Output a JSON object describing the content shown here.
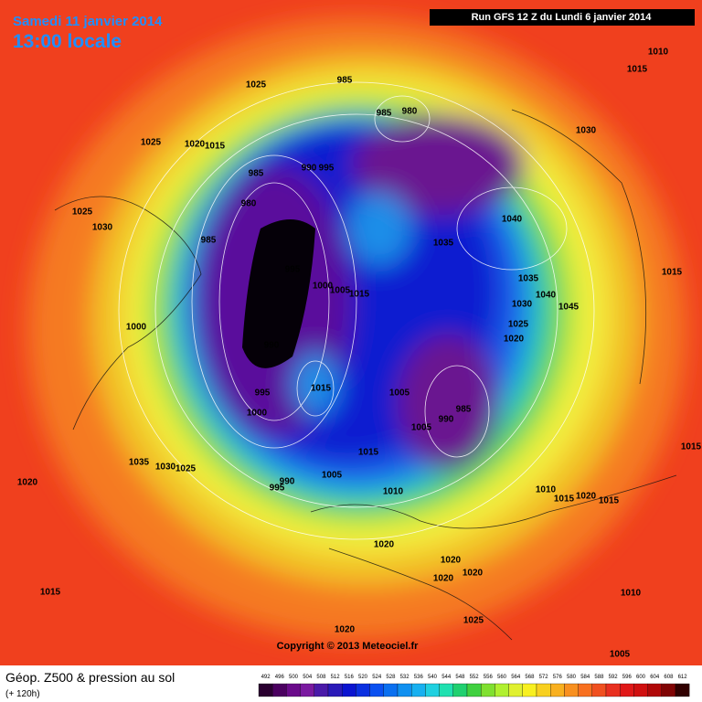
{
  "header": {
    "date": "Samedi 11 janvier 2014",
    "time": "13:00 locale",
    "run": "Run GFS 12 Z du Lundi 6 janvier 2014"
  },
  "isobar_labels": [
    "1025",
    "985",
    "985",
    "980",
    "1025",
    "1020",
    "1015",
    "985",
    "990",
    "995",
    "980",
    "1025",
    "1030",
    "985",
    "995",
    "1000",
    "1005",
    "1015",
    "1000",
    "990",
    "1015",
    "995",
    "1000",
    "1005",
    "1035",
    "1030",
    "1025",
    "990",
    "995",
    "1005",
    "1015",
    "1010",
    "1020",
    "1040",
    "1035",
    "1035",
    "1040",
    "1030",
    "1045",
    "1025",
    "1020",
    "985",
    "990",
    "1005",
    "1030",
    "1015",
    "1010",
    "1015",
    "1015",
    "1010",
    "1015",
    "1020",
    "1015",
    "1020",
    "1020",
    "1020",
    "1020",
    "1015",
    "1010",
    "1025",
    "1020",
    "1005"
  ],
  "copyright": "Copyright © 2013 Meteociel.fr",
  "footer": {
    "title": "Géop. Z500 & pression au sol",
    "lead": "(+ 120h)"
  },
  "legend": {
    "values": [
      492,
      496,
      500,
      504,
      508,
      512,
      516,
      520,
      524,
      528,
      532,
      536,
      540,
      544,
      548,
      552,
      556,
      560,
      564,
      568,
      572,
      576,
      580,
      584,
      588,
      592,
      596,
      600,
      604,
      608,
      612
    ]
  }
}
